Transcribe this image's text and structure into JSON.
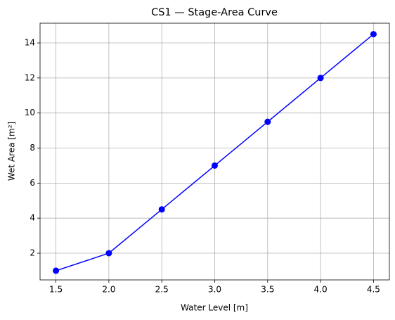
{
  "chart_data": {
    "type": "line",
    "title": "CS1 — Stage-Area Curve",
    "x_label": "Water Level [m]",
    "y_label": "Wet Area [m²]",
    "x": [
      1.5,
      2,
      2.5,
      3,
      3.5,
      4,
      4.5
    ],
    "series": [
      {
        "name": "Wet Area",
        "color": "#0000ff",
        "values": [
          1,
          2,
          4.5,
          7,
          9.5,
          12,
          14.5
        ]
      }
    ],
    "xlim": [
      1.35,
      4.65
    ],
    "ylim": [
      0.475,
      15.125
    ],
    "xticks": [
      1.5,
      {
        "value": 2,
        "label": "2.0"
      },
      2.5,
      {
        "value": 3,
        "label": "3.0"
      },
      3.5,
      {
        "value": 4,
        "label": "4.0"
      },
      4.5
    ],
    "yticks": [
      2,
      4,
      6,
      8,
      10,
      12,
      14
    ],
    "grid": true,
    "markers": true
  }
}
